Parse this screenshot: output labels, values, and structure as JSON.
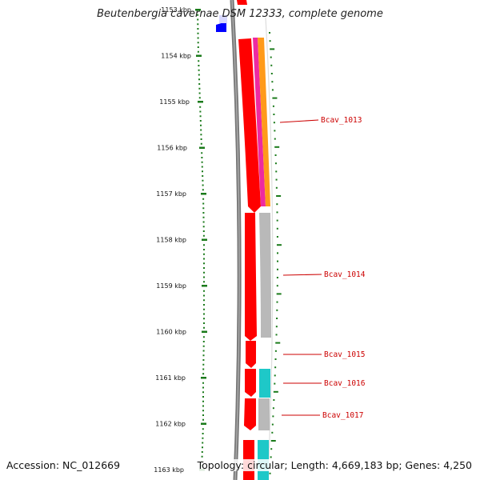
{
  "title": "Beutenbergia cavernae DSM 12333, complete genome",
  "accession_text": "Accession: NC_012669",
  "topology_text": "Topology: circular; Length: 4,669,183 bp; Genes: 4,250",
  "ticks": {
    "labels": [
      "1153 kbp",
      "1154 kbp",
      "1155 kbp",
      "1156 kbp",
      "1157 kbp",
      "1158 kbp",
      "1159 kbp",
      "1160 kbp",
      "1161 kbp",
      "1162 kbp",
      "1163 kbp"
    ]
  },
  "genes": [
    {
      "label": "Bcav_1013"
    },
    {
      "label": "Bcav_1014"
    },
    {
      "label": "Bcav_1015"
    },
    {
      "label": "Bcav_1016"
    },
    {
      "label": "Bcav_1017"
    }
  ],
  "colors": {
    "cds": "#ff0000",
    "pink": "#ee2aa0",
    "orange": "#ff9a1a",
    "gray": "#b9b9b9",
    "cyan": "#1ec8c8",
    "backbone": "#777777",
    "tick": "#1a7a1a",
    "blue": "#0000ff",
    "label": "#cc0000"
  }
}
